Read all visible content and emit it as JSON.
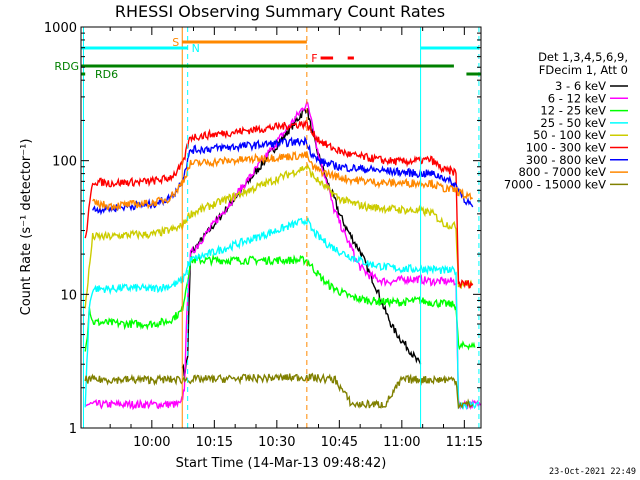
{
  "chart_data": {
    "type": "line",
    "title": "RHESSI Observing Summary Count Rates",
    "xlabel": "Start Time (14-Mar-13 09:48:42)",
    "ylabel": "Count Rate (s⁻¹ detector⁻¹)",
    "x_range_minutes": [
      -17,
      79
    ],
    "x_ticks": [
      {
        "minute": 0,
        "label": "10:00"
      },
      {
        "minute": 15,
        "label": "10:15"
      },
      {
        "minute": 30,
        "label": "10:30"
      },
      {
        "minute": 45,
        "label": "10:45"
      },
      {
        "minute": 60,
        "label": "11:00"
      },
      {
        "minute": 75,
        "label": "11:15"
      }
    ],
    "y_scale": "log",
    "ylim": [
      1,
      1000
    ],
    "y_ticks": [
      {
        "value": 1,
        "label": "1"
      },
      {
        "value": 10,
        "label": "10"
      },
      {
        "value": 100,
        "label": "100"
      },
      {
        "value": 1000,
        "label": "1000"
      }
    ],
    "legend": {
      "placement": "right",
      "header": [
        "Det 1,3,4,5,6,9,",
        "FDecim 1, Att 0"
      ]
    },
    "series": [
      {
        "name": "3 - 6 keV",
        "color": "#000000",
        "points": [
          [
            7.3,
            3
          ],
          [
            7.8,
            2.5
          ],
          [
            8.6,
            3.5
          ],
          [
            9.3,
            20
          ],
          [
            37.2,
            250
          ],
          [
            38.5,
            160
          ],
          [
            40,
            110
          ],
          [
            42,
            70
          ],
          [
            44,
            50
          ],
          [
            45,
            40
          ],
          [
            47,
            30
          ],
          [
            48.5,
            25
          ],
          [
            50,
            21
          ],
          [
            52,
            15
          ],
          [
            54,
            11
          ],
          [
            56,
            7.5
          ],
          [
            58,
            5.5
          ],
          [
            60,
            4.5
          ],
          [
            62,
            3.8
          ],
          [
            63.5,
            3.2
          ],
          [
            64.5,
            3
          ]
        ]
      },
      {
        "name": "6 - 12 keV",
        "color": "#ff00ff",
        "points": [
          [
            -16,
            1.5
          ],
          [
            7,
            1.5
          ],
          [
            7.8,
            2
          ],
          [
            8.6,
            10
          ],
          [
            9.3,
            20
          ],
          [
            37.2,
            270
          ],
          [
            38.5,
            200
          ],
          [
            40,
            110
          ],
          [
            42,
            70
          ],
          [
            43.5,
            45
          ],
          [
            45,
            35
          ],
          [
            46.5,
            27
          ],
          [
            48,
            22
          ],
          [
            49,
            18
          ],
          [
            50,
            16
          ],
          [
            52,
            14
          ],
          [
            54,
            13
          ],
          [
            56,
            12.5
          ],
          [
            58,
            12.5
          ],
          [
            61,
            13
          ],
          [
            64,
            13
          ],
          [
            67,
            12.5
          ],
          [
            70,
            12.5
          ],
          [
            72,
            12.5
          ],
          [
            73,
            12.5
          ],
          [
            73.6,
            1.5
          ],
          [
            79,
            1.5
          ]
        ]
      },
      {
        "name": "12 - 25 keV",
        "color": "#00ff00",
        "points": [
          [
            -16,
            4
          ],
          [
            -15.5,
            5
          ],
          [
            -15,
            8
          ],
          [
            -14.2,
            6.2
          ],
          [
            -10,
            6.1
          ],
          [
            -5,
            6
          ],
          [
            0,
            6
          ],
          [
            4,
            6.3
          ],
          [
            6,
            7
          ],
          [
            7.2,
            7.5
          ],
          [
            8.6,
            13
          ],
          [
            9.3,
            18
          ],
          [
            37.2,
            18
          ],
          [
            38.5,
            16
          ],
          [
            40,
            14
          ],
          [
            42,
            12
          ],
          [
            45,
            10.5
          ],
          [
            48,
            9.5
          ],
          [
            52,
            9
          ],
          [
            56,
            8.8
          ],
          [
            60,
            8.7
          ],
          [
            64,
            9
          ],
          [
            67,
            8.7
          ],
          [
            70,
            8.5
          ],
          [
            73,
            8.3
          ],
          [
            73.6,
            4
          ],
          [
            76,
            4.2
          ],
          [
            77.5,
            4
          ]
        ]
      },
      {
        "name": "25 - 50 keV",
        "color": "#00ffff",
        "points": [
          [
            -16,
            1.5
          ],
          [
            -15,
            8
          ],
          [
            -14.2,
            11
          ],
          [
            -10,
            11
          ],
          [
            -5,
            11.2
          ],
          [
            0,
            11
          ],
          [
            4,
            11.5
          ],
          [
            6,
            12
          ],
          [
            7.5,
            13
          ],
          [
            8.6,
            16
          ],
          [
            9.3,
            18
          ],
          [
            37.2,
            36
          ],
          [
            38.5,
            30
          ],
          [
            40,
            27
          ],
          [
            42,
            24
          ],
          [
            45,
            21
          ],
          [
            48,
            19
          ],
          [
            52,
            17
          ],
          [
            56,
            16
          ],
          [
            60,
            15.5
          ],
          [
            64,
            15.5
          ],
          [
            67,
            15.5
          ],
          [
            70,
            15
          ],
          [
            73,
            15
          ],
          [
            73.6,
            1.5
          ],
          [
            78.5,
            1.5
          ]
        ]
      },
      {
        "name": "50 - 100 keV",
        "color": "#cccc00",
        "points": [
          [
            -16,
            8
          ],
          [
            -14.2,
            27
          ],
          [
            -10,
            27
          ],
          [
            -5,
            28
          ],
          [
            0,
            28
          ],
          [
            4,
            30
          ],
          [
            6,
            31
          ],
          [
            7.5,
            33
          ],
          [
            8.6,
            38
          ],
          [
            9.3,
            40
          ],
          [
            37.2,
            90
          ],
          [
            38.5,
            78
          ],
          [
            40,
            70
          ],
          [
            42,
            62
          ],
          [
            45,
            52
          ],
          [
            48,
            48
          ],
          [
            52,
            45
          ],
          [
            56,
            44
          ],
          [
            60,
            43
          ],
          [
            64,
            42
          ],
          [
            67,
            41
          ],
          [
            70,
            34
          ],
          [
            73,
            32
          ],
          [
            73.6,
            12
          ],
          [
            77,
            12
          ]
        ]
      },
      {
        "name": "100 - 300 keV",
        "color": "#ff0000",
        "points": [
          [
            -16,
            25
          ],
          [
            -14.2,
            70
          ],
          [
            -10,
            68
          ],
          [
            -5,
            69
          ],
          [
            0,
            70
          ],
          [
            4,
            74
          ],
          [
            6,
            82
          ],
          [
            7.5,
            95
          ],
          [
            8.6,
            130
          ],
          [
            9.3,
            150
          ],
          [
            37.2,
            190
          ],
          [
            38.5,
            160
          ],
          [
            40,
            145
          ],
          [
            42,
            130
          ],
          [
            45,
            118
          ],
          [
            48,
            110
          ],
          [
            52,
            105
          ],
          [
            56,
            100
          ],
          [
            60,
            98
          ],
          [
            64,
            100
          ],
          [
            67,
            102
          ],
          [
            70,
            85
          ],
          [
            73,
            82
          ],
          [
            73.6,
            12
          ],
          [
            77,
            12
          ]
        ]
      },
      {
        "name": "300 - 800 keV",
        "color": "#0000ff",
        "points": [
          [
            -14.2,
            43
          ],
          [
            -10,
            44
          ],
          [
            -5,
            46
          ],
          [
            0,
            47
          ],
          [
            4,
            52
          ],
          [
            6,
            60
          ],
          [
            7.5,
            75
          ],
          [
            8.6,
            100
          ],
          [
            9.3,
            120
          ],
          [
            37.2,
            140
          ],
          [
            38.5,
            110
          ],
          [
            40,
            100
          ],
          [
            42,
            95
          ],
          [
            45,
            90
          ],
          [
            48,
            88
          ],
          [
            52,
            86
          ],
          [
            56,
            84
          ],
          [
            60,
            82
          ],
          [
            64,
            80
          ],
          [
            67,
            80
          ],
          [
            70,
            75
          ],
          [
            73,
            65
          ],
          [
            75,
            52
          ],
          [
            77,
            45
          ]
        ]
      },
      {
        "name": "800 - 7000 keV",
        "color": "#ff8800",
        "points": [
          [
            -14.2,
            48
          ],
          [
            -10,
            46
          ],
          [
            -5,
            47
          ],
          [
            0,
            48
          ],
          [
            4,
            52
          ],
          [
            6,
            60
          ],
          [
            7.5,
            70
          ],
          [
            8.6,
            85
          ],
          [
            9.3,
            95
          ],
          [
            37.2,
            110
          ],
          [
            38.5,
            90
          ],
          [
            40,
            85
          ],
          [
            42,
            80
          ],
          [
            45,
            75
          ],
          [
            48,
            72
          ],
          [
            52,
            70
          ],
          [
            56,
            68
          ],
          [
            60,
            68
          ],
          [
            64,
            68
          ],
          [
            67,
            68
          ],
          [
            70,
            62
          ],
          [
            73,
            60
          ],
          [
            75,
            55
          ],
          [
            77,
            52
          ]
        ]
      },
      {
        "name": "7000 - 15000 keV",
        "color": "#808000",
        "points": [
          [
            -16,
            2.3
          ],
          [
            7.3,
            2.3
          ],
          [
            37.2,
            2.4
          ],
          [
            44,
            2.3
          ],
          [
            48,
            1.5
          ],
          [
            52,
            1.5
          ],
          [
            56,
            1.5
          ],
          [
            60,
            2.3
          ],
          [
            64,
            2.3
          ],
          [
            68,
            2.3
          ],
          [
            73,
            2.3
          ],
          [
            73.6,
            1.5
          ],
          [
            77,
            1.5
          ]
        ]
      }
    ],
    "bars": [
      {
        "label": "S",
        "color": "#ff8800",
        "start": 7.3,
        "end": 37.2,
        "level": 1
      },
      {
        "label": "N",
        "color": "#00ffff",
        "start": -17,
        "end": 8.6,
        "level": 2
      },
      {
        "label": "",
        "color": "#00ffff",
        "start": 64.5,
        "end": 78.5,
        "level": 2
      },
      {
        "label": "F",
        "color": "#ff0000",
        "start": 40.5,
        "end": 43.5,
        "level": 3
      },
      {
        "label": "",
        "color": "#ff0000",
        "start": 47,
        "end": 48.5,
        "level": 3
      },
      {
        "label": "RDG",
        "color": "#008000",
        "start": -17,
        "end": 72.5,
        "level": 4
      },
      {
        "label": "",
        "color": "#008000",
        "start": 75.5,
        "end": 79,
        "level": 5
      },
      {
        "label": "RD6",
        "color": "#008000",
        "start": -17,
        "end": -16,
        "level": 5
      }
    ],
    "vertical_markers": [
      {
        "minute": -16.4,
        "color": "#00ffff",
        "style": "solid"
      },
      {
        "minute": 7.3,
        "color": "#ff8800",
        "style": "solid"
      },
      {
        "minute": 8.6,
        "color": "#00ffff",
        "style": "dashed"
      },
      {
        "minute": 37.2,
        "color": "#ff8800",
        "style": "dashed"
      },
      {
        "minute": 64.5,
        "color": "#00ffff",
        "style": "solid"
      },
      {
        "minute": 78.5,
        "color": "#00ffff",
        "style": "dashed"
      }
    ]
  },
  "footer": {
    "timestamp": "23-Oct-2021 22:49"
  }
}
